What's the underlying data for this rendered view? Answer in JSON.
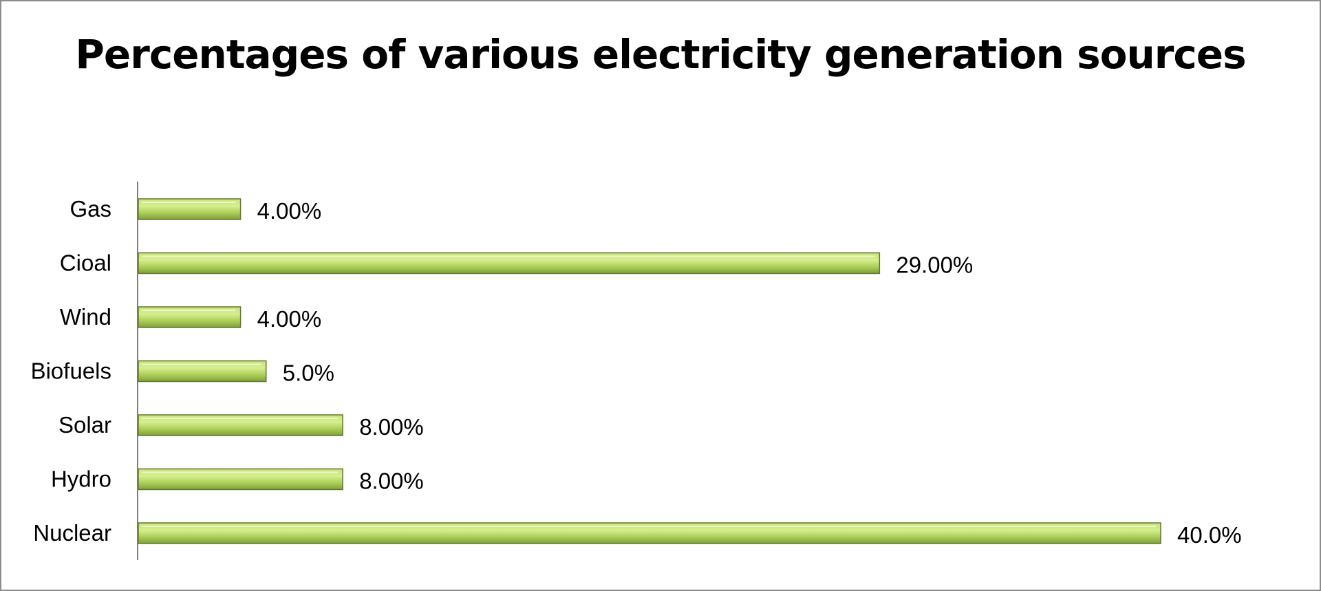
{
  "chart_data": {
    "type": "bar",
    "orientation": "horizontal",
    "title": "Percentages of various electricity generation sources",
    "categories": [
      "Gas",
      "Cioal",
      "Wind",
      "Biofuels",
      "Solar",
      "Hydro",
      "Nuclear"
    ],
    "values": [
      4.0,
      29.0,
      4.0,
      5.0,
      8.0,
      8.0,
      40.0
    ],
    "data_labels": [
      "4.00%",
      "29.00%",
      "4.00%",
      "5.0%",
      "8.00%",
      "8.00%",
      "40.0%"
    ],
    "xlim": [
      0,
      40
    ],
    "grid": false,
    "legend": "none",
    "xlabel": "",
    "ylabel": "",
    "bar_color": "#9bbb59"
  }
}
